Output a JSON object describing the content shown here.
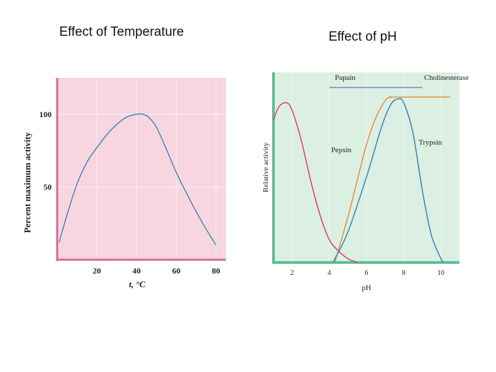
{
  "slide": {
    "left_title": "Effect of Temperature",
    "right_title": "Effect of pH"
  },
  "chart_data": [
    {
      "type": "line",
      "title": "Effect of Temperature",
      "xlabel": "t, °C",
      "ylabel": "Percent maximum activity",
      "xlim": [
        0,
        85
      ],
      "ylim": [
        0,
        125
      ],
      "xticks": [
        20,
        40,
        60,
        80
      ],
      "yticks": [
        50,
        100
      ],
      "grid": true,
      "background_color": "#f7d6df",
      "axis_color": "#d96a93",
      "series": [
        {
          "name": "",
          "color": "#2a7fb0",
          "x": [
            1,
            5,
            10,
            15,
            20,
            25,
            30,
            35,
            40,
            43,
            46,
            50,
            55,
            60,
            65,
            70,
            75,
            80
          ],
          "y": [
            12,
            31,
            52,
            67,
            77,
            86,
            93,
            98,
            100,
            100,
            98,
            91,
            76,
            60,
            46,
            33,
            21,
            10
          ]
        }
      ]
    },
    {
      "type": "line",
      "title": "Effect of pH",
      "xlabel": "pH",
      "ylabel": "Relative activity",
      "xlim": [
        1,
        11
      ],
      "ylim": [
        0,
        100
      ],
      "xticks": [
        2,
        4,
        6,
        8,
        10
      ],
      "grid": true,
      "background_color": "#dcefe3",
      "axis_color": "#5ebf94",
      "series": [
        {
          "name": "Pepsin",
          "color": "#d6336c",
          "x": [
            1,
            1.3,
            1.7,
            2.0,
            2.5,
            3.0,
            3.5,
            4.0,
            4.5,
            5.0,
            5.5
          ],
          "y": [
            75,
            82,
            84,
            80,
            64,
            43,
            25,
            12,
            6,
            2,
            0
          ]
        },
        {
          "name": "Cholinesterase",
          "color": "#e8872a",
          "x": [
            4.3,
            5.0,
            5.5,
            6.0,
            6.5,
            7.0,
            7.3,
            7.5,
            10.5
          ],
          "y": [
            0,
            24,
            43,
            62,
            76,
            85,
            87,
            87,
            87
          ]
        },
        {
          "name": "Trypsin",
          "color": "#2a7fb0",
          "x": [
            4.2,
            5.0,
            6.0,
            6.8,
            7.3,
            7.7,
            8.0,
            8.5,
            9.0,
            9.5,
            10.1
          ],
          "y": [
            0,
            16,
            45,
            71,
            83,
            86,
            84,
            68,
            38,
            14,
            0
          ]
        },
        {
          "name": "Papain",
          "color": "#6e7fc0",
          "x": [
            4.0,
            9.0
          ],
          "y": [
            92,
            92
          ]
        }
      ]
    }
  ]
}
